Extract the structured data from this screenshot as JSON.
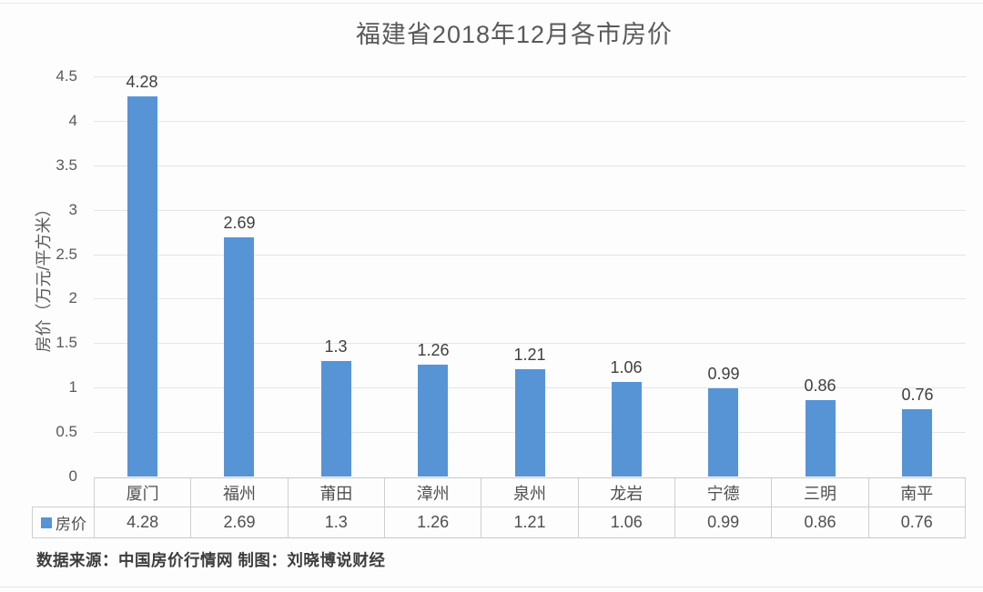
{
  "chart_data": {
    "type": "bar",
    "title": "福建省2018年12月各市房价",
    "categories": [
      "厦门",
      "福州",
      "莆田",
      "漳州",
      "泉州",
      "龙岩",
      "宁德",
      "三明",
      "南平"
    ],
    "series": [
      {
        "name": "房价",
        "values": [
          4.28,
          2.69,
          1.3,
          1.26,
          1.21,
          1.06,
          0.99,
          0.86,
          0.76
        ],
        "value_labels": [
          "4.28",
          "2.69",
          "1.3",
          "1.26",
          "1.21",
          "1.06",
          "0.99",
          "0.86",
          "0.76"
        ]
      }
    ],
    "xlabel": "",
    "ylabel": "房价（万元/平方米）",
    "ylim": [
      0,
      4.5
    ],
    "yticks": [
      "0",
      "0.5",
      "1",
      "1.5",
      "2",
      "2.5",
      "3",
      "3.5",
      "4",
      "4.5"
    ],
    "grid": true,
    "bar_color": "#5794D6",
    "legend_position": "data-table-bottom-left",
    "data_table_shown": true
  },
  "footer": {
    "source_text": "数据来源：中国房价行情网 制图：刘晓博说财经"
  }
}
